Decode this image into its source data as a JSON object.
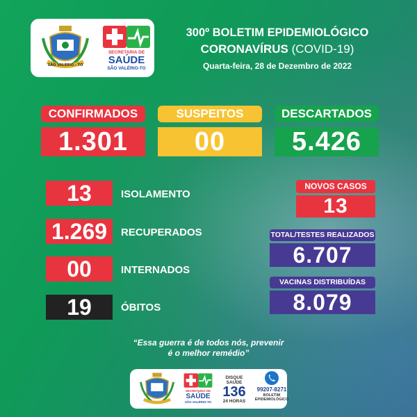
{
  "header": {
    "crest_text": "SÃO VALERIO - TO",
    "secretaria_label": "SECRETARIA DE",
    "saude_label": "SAÚDE",
    "municipio": "SÃO VALÉRIO-TO",
    "title_line1": "300º BOLETIM EPIDEMIOLÓGICO",
    "title_line2_bold": "CORONAVÍRUS",
    "title_line2_light": "(COVID-19)",
    "date": "Quarta-feira, 28 de Dezembro de 2022"
  },
  "top_stats": {
    "confirmados": {
      "label": "CONFIRMADOS",
      "value": "1.301"
    },
    "suspeitos": {
      "label": "SUSPEITOS",
      "value": "00"
    },
    "descartados": {
      "label": "DESCARTADOS",
      "value": "5.426"
    }
  },
  "rows": [
    {
      "value": "13",
      "label": "ISOLAMENTO"
    },
    {
      "value": "1.269",
      "label": "RECUPERADOS"
    },
    {
      "value": "00",
      "label": "INTERNADOS"
    },
    {
      "value": "19",
      "label": "ÓBITOS"
    }
  ],
  "side": {
    "novos_casos": {
      "label": "NOVOS CASOS",
      "value": "13"
    },
    "testes": {
      "label": "TOTAL/TESTES REALIZADOS",
      "value": "6.707"
    },
    "vacinas": {
      "label": "VACINAS DISTRIBUÍDAS",
      "value": "8.079"
    }
  },
  "quote": {
    "line1": "“Essa guerra é de todos nós, prevenir",
    "line2": "é o melhor remédio”"
  },
  "footer": {
    "disque_label": "DISQUE SAÚDE",
    "disque_number": "136",
    "disque_hours": "24 HORAS",
    "phone": "99207-8271",
    "boletim_label": "BOLETIM",
    "boletim_sub": "EPIDEMIOLÓGICO"
  },
  "colors": {
    "red": "#e8343f",
    "yellow": "#f7c332",
    "green": "#17a24d",
    "purple": "#473a93",
    "dark": "#222222"
  }
}
